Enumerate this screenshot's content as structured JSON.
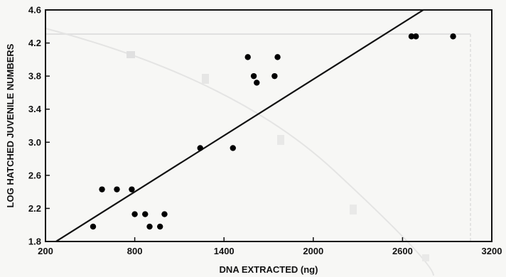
{
  "chart_data": {
    "type": "scatter",
    "title": "",
    "xlabel": "DNA EXTRACTED (ng)",
    "ylabel": "LOG HATCHED JUVENILE NUMBERS",
    "xlim": [
      200,
      3200
    ],
    "ylim": [
      1.8,
      4.6
    ],
    "x_ticks": [
      "200",
      "800",
      "1400",
      "2000",
      "2600",
      "3200"
    ],
    "y_ticks": [
      "1.8",
      "2.2",
      "2.6",
      "3.0",
      "3.4",
      "3.8",
      "4.2",
      "4.6"
    ],
    "grid": false,
    "points": [
      {
        "x": 520,
        "y": 1.98
      },
      {
        "x": 580,
        "y": 2.43
      },
      {
        "x": 680,
        "y": 2.43
      },
      {
        "x": 780,
        "y": 2.43
      },
      {
        "x": 800,
        "y": 2.13
      },
      {
        "x": 870,
        "y": 2.13
      },
      {
        "x": 900,
        "y": 1.98
      },
      {
        "x": 970,
        "y": 1.98
      },
      {
        "x": 1000,
        "y": 2.13
      },
      {
        "x": 1240,
        "y": 2.93
      },
      {
        "x": 1460,
        "y": 2.93
      },
      {
        "x": 1560,
        "y": 4.03
      },
      {
        "x": 1600,
        "y": 3.8
      },
      {
        "x": 1620,
        "y": 3.72
      },
      {
        "x": 1740,
        "y": 3.8
      },
      {
        "x": 1760,
        "y": 4.03
      },
      {
        "x": 2660,
        "y": 4.28
      },
      {
        "x": 2690,
        "y": 4.28
      },
      {
        "x": 2940,
        "y": 4.28
      }
    ],
    "regression_line": {
      "x": [
        200,
        2740
      ],
      "y": [
        1.72,
        4.6
      ]
    },
    "colors": {
      "points": "#000000",
      "line": "#111111",
      "axes": "#111111",
      "background": "#f7f7f5",
      "ghost": "#cfcfcf"
    }
  }
}
